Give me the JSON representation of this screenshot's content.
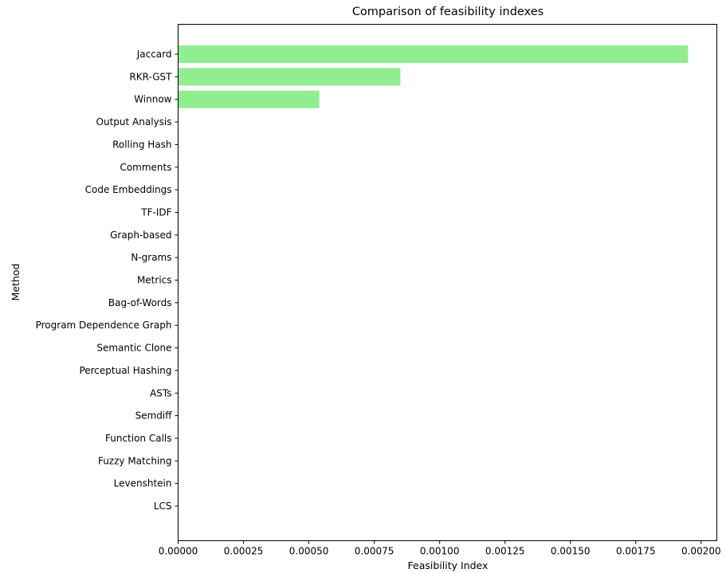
{
  "chart_data": {
    "type": "bar",
    "orientation": "horizontal",
    "title": "Comparison of feasibility indexes",
    "xlabel": "Feasibility Index",
    "ylabel": "Method",
    "categories": [
      "Jaccard",
      "RKR-GST",
      "Winnow",
      "Output Analysis",
      "Rolling Hash",
      "Comments",
      "Code Embeddings",
      "TF-IDF",
      "Graph-based",
      "N-grams",
      "Metrics",
      "Bag-of-Words",
      "Program Dependence Graph",
      "Semantic Clone",
      "Perceptual Hashing",
      "ASTs",
      "Semdiff",
      "Function Calls",
      "Fuzzy Matching",
      "Levenshtein",
      "LCS"
    ],
    "values": [
      0.00195,
      0.00085,
      0.00054,
      0,
      0,
      0,
      0,
      0,
      0,
      0,
      0,
      0,
      0,
      0,
      0,
      0,
      0,
      0,
      0,
      0,
      0
    ],
    "xlim": [
      0,
      0.00206
    ],
    "xticks": [
      "0.00000",
      "0.00025",
      "0.00050",
      "0.00075",
      "0.00100",
      "0.00125",
      "0.00150",
      "0.00175",
      "0.00200"
    ],
    "xtick_values": [
      0,
      0.00025,
      0.0005,
      0.00075,
      0.001,
      0.00125,
      0.0015,
      0.00175,
      0.002
    ],
    "grid": false,
    "bar_color": "#90ee90"
  }
}
